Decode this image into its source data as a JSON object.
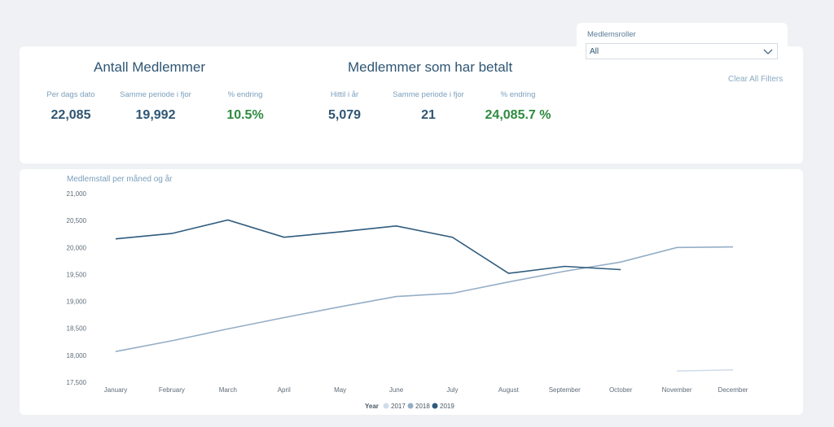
{
  "kpi_left": {
    "title": "Antall Medlemmer",
    "items": [
      {
        "label": "Per dags dato",
        "value": "22,085"
      },
      {
        "label": "Samme periode i fjor",
        "value": "19,992"
      },
      {
        "label": "% endring",
        "value": "10.5%"
      }
    ]
  },
  "kpi_right": {
    "title": "Medlemmer som har betalt",
    "items": [
      {
        "label": "Hittil i år",
        "value": "5,079"
      },
      {
        "label": "Samme periode i fjor",
        "value": "21"
      },
      {
        "label": "% endring",
        "value": "24,085.7 %"
      }
    ]
  },
  "slicer": {
    "label": "Medlemsroller",
    "value": "All",
    "icon": "chevron-down-icon"
  },
  "clear_filters": "Clear All Filters",
  "colors": {
    "positive": "#2e8b40",
    "primary": "#2f5674",
    "muted": "#7a9fbc"
  },
  "chart_data": {
    "type": "line",
    "title": "Medlemstall per måned og år",
    "categories": [
      "January",
      "February",
      "March",
      "April",
      "May",
      "June",
      "July",
      "August",
      "September",
      "October",
      "November",
      "December"
    ],
    "ylim": [
      17500,
      21000
    ],
    "yticks": [
      17500,
      18000,
      18500,
      19000,
      19500,
      20000,
      20500,
      21000
    ],
    "ytick_labels": [
      "17,500",
      "18,000",
      "18,500",
      "19,000",
      "19,500",
      "20,000",
      "20,500",
      "21,000"
    ],
    "legend_title": "Year",
    "legend_position": "bottom-center",
    "series": [
      {
        "name": "2017",
        "color": "#cfdcea",
        "values": [
          null,
          null,
          null,
          null,
          null,
          null,
          null,
          null,
          null,
          null,
          17710,
          17730
        ]
      },
      {
        "name": "2018",
        "color": "#94aec6",
        "values": [
          18070,
          18270,
          18490,
          18700,
          18900,
          19090,
          19150,
          19360,
          19560,
          19730,
          20000,
          20010
        ]
      },
      {
        "name": "2019",
        "color": "#2f5b7d",
        "values": [
          20160,
          20260,
          20510,
          20190,
          20290,
          20400,
          20190,
          19520,
          19650,
          19590,
          null,
          null
        ]
      }
    ]
  }
}
